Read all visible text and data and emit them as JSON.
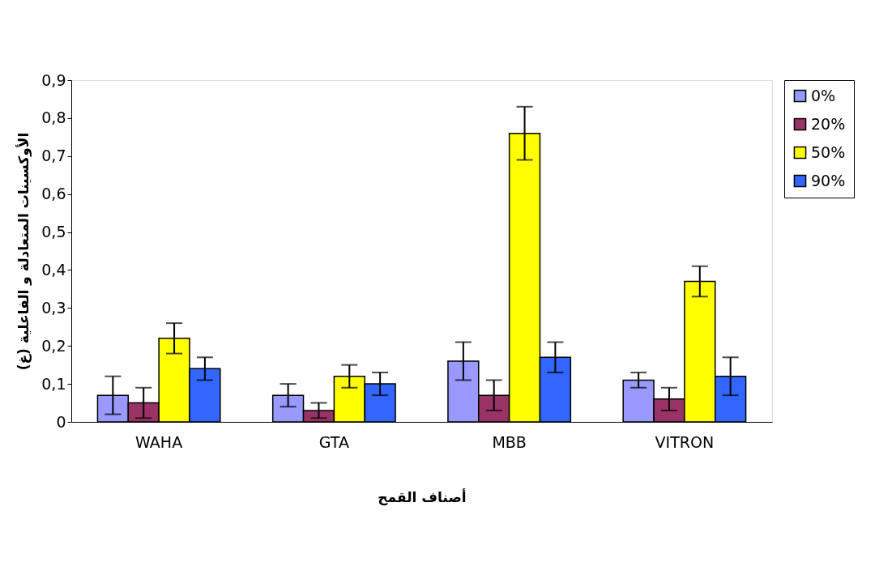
{
  "chart_data": {
    "type": "bar",
    "categories": [
      "WAHA",
      "GTA",
      "MBB",
      "VITRON"
    ],
    "series": [
      {
        "name": "0%",
        "color": "#9999ff",
        "values": [
          0.07,
          0.07,
          0.16,
          0.11
        ],
        "errors": [
          0.05,
          0.03,
          0.05,
          0.02
        ]
      },
      {
        "name": "20%",
        "color": "#993366",
        "values": [
          0.05,
          0.03,
          0.07,
          0.06
        ],
        "errors": [
          0.04,
          0.02,
          0.04,
          0.03
        ]
      },
      {
        "name": "50%",
        "color": "#ffff00",
        "values": [
          0.22,
          0.12,
          0.76,
          0.37
        ],
        "errors": [
          0.04,
          0.03,
          0.07,
          0.04
        ]
      },
      {
        "name": "90%",
        "color": "#3366ff",
        "values": [
          0.14,
          0.1,
          0.17,
          0.12
        ],
        "errors": [
          0.03,
          0.03,
          0.04,
          0.05
        ]
      }
    ],
    "xlabel": "أصناف القمح",
    "ylabel": "الأوكسينات المتعادلة و الفاعلية (غ)",
    "ylim": [
      0,
      0.9
    ],
    "yticks": [
      {
        "value": 0,
        "label": "0"
      },
      {
        "value": 0.1,
        "label": "0,1"
      },
      {
        "value": 0.2,
        "label": "0,2"
      },
      {
        "value": 0.3,
        "label": "0,3"
      },
      {
        "value": 0.4,
        "label": "0,4"
      },
      {
        "value": 0.5,
        "label": "0,5"
      },
      {
        "value": 0.6,
        "label": "0,6"
      },
      {
        "value": 0.7,
        "label": "0,7"
      },
      {
        "value": 0.8,
        "label": "0,8"
      },
      {
        "value": 0.9,
        "label": "0,9"
      }
    ],
    "grid": false,
    "legend": "right"
  }
}
